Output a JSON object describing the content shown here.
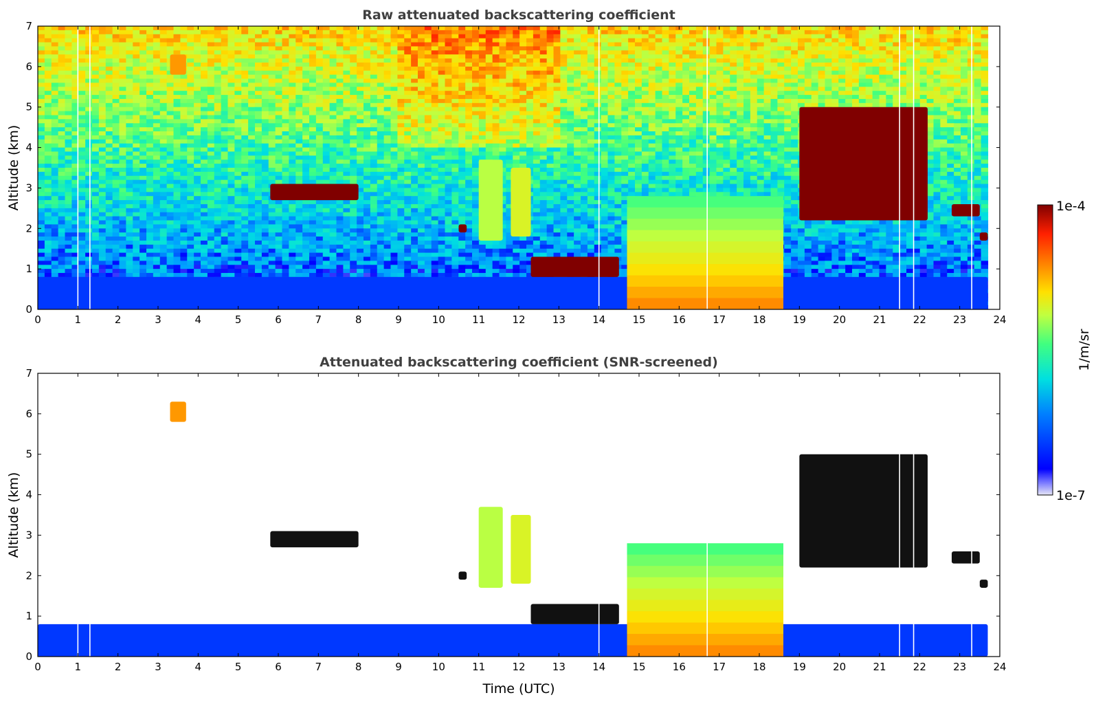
{
  "chart_data": [
    {
      "type": "heatmap",
      "title": "Raw attenuated backscattering coefficient",
      "xlabel": "",
      "ylabel": "Altitude (km)",
      "xlim": [
        0,
        24
      ],
      "ylim": [
        0,
        7
      ],
      "xticks": [
        "0",
        "1",
        "2",
        "3",
        "4",
        "5",
        "6",
        "7",
        "8",
        "9",
        "10",
        "11",
        "12",
        "13",
        "14",
        "15",
        "16",
        "17",
        "18",
        "19",
        "20",
        "21",
        "22",
        "23",
        "24"
      ],
      "yticks": [
        "0",
        "1",
        "2",
        "3",
        "4",
        "5",
        "6",
        "7"
      ],
      "data_end_hour": 23.7,
      "gaps_hours": [
        1.0,
        1.3,
        14.0,
        16.7,
        21.5,
        21.85,
        23.3
      ],
      "features": [
        {
          "name": "boundary layer",
          "t0": 0,
          "t1": 23.7,
          "z0": 0,
          "z1": 0.8,
          "level": 0.15
        },
        {
          "name": "aerosol plume",
          "t0": 3.3,
          "t1": 3.7,
          "z0": 5.8,
          "z1": 6.3,
          "level": 0.75
        },
        {
          "name": "thin cloud layer",
          "t0": 5.8,
          "t1": 8.0,
          "z0": 2.7,
          "z1": 3.1,
          "level": 1.0
        },
        {
          "name": "cloud fragment",
          "t0": 10.5,
          "t1": 10.7,
          "z0": 1.9,
          "z1": 2.1,
          "level": 1.0
        },
        {
          "name": "virga streak",
          "t0": 11.0,
          "t1": 11.6,
          "z0": 1.7,
          "z1": 3.7,
          "level": 0.55
        },
        {
          "name": "virga streak",
          "t0": 11.8,
          "t1": 12.3,
          "z0": 1.8,
          "z1": 3.5,
          "level": 0.6
        },
        {
          "name": "low cloud deck",
          "t0": 12.3,
          "t1": 14.5,
          "z0": 0.8,
          "z1": 1.3,
          "level": 1.0
        },
        {
          "name": "convective plume",
          "t0": 14.7,
          "t1": 18.6,
          "z0": 0.0,
          "z1": 2.8,
          "level": 0.7
        },
        {
          "name": "upper cloud",
          "t0": 19.0,
          "t1": 22.2,
          "z0": 2.2,
          "z1": 5.0,
          "level": 1.0
        },
        {
          "name": "cloud layer",
          "t0": 22.8,
          "t1": 23.5,
          "z0": 2.3,
          "z1": 2.6,
          "level": 1.0
        },
        {
          "name": "cloud fragment",
          "t0": 23.5,
          "t1": 23.7,
          "z0": 1.7,
          "z1": 1.9,
          "level": 1.0
        }
      ]
    },
    {
      "type": "heatmap",
      "title": "Attenuated backscattering coefficient (SNR-screened)",
      "xlabel": "Time (UTC)",
      "ylabel": "Altitude (km)",
      "xlim": [
        0,
        24
      ],
      "ylim": [
        0,
        7
      ],
      "xticks": [
        "0",
        "1",
        "2",
        "3",
        "4",
        "5",
        "6",
        "7",
        "8",
        "9",
        "10",
        "11",
        "12",
        "13",
        "14",
        "15",
        "16",
        "17",
        "18",
        "19",
        "20",
        "21",
        "22",
        "23",
        "24"
      ],
      "yticks": [
        "0",
        "1",
        "2",
        "3",
        "4",
        "5",
        "6",
        "7"
      ],
      "screened": true
    }
  ],
  "colorbar": {
    "label": "1/m/sr",
    "max_label": "1e-4",
    "min_label": "1e-7",
    "colormap": [
      "#e6e6f5",
      "#0000ff",
      "#00a0ff",
      "#00e0e0",
      "#40ff80",
      "#c0ff40",
      "#ffe000",
      "#ff8000",
      "#ff2000",
      "#800000"
    ]
  }
}
